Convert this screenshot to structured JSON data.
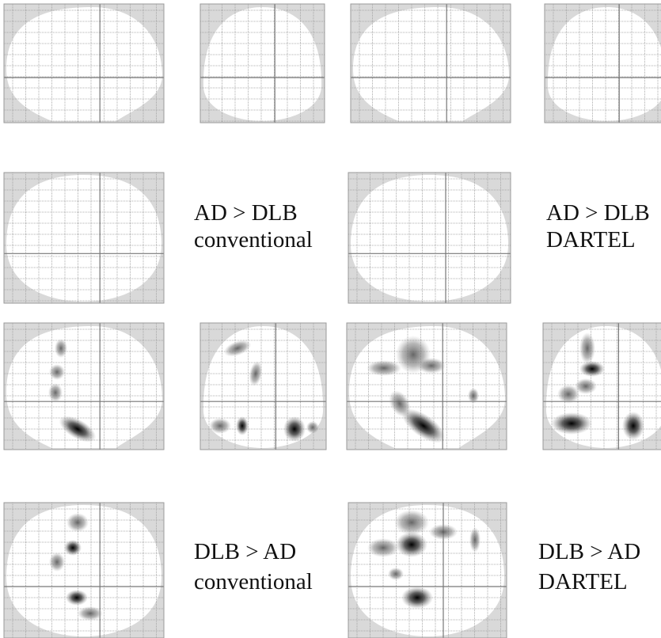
{
  "panels": [
    {
      "contrast": "AD > DLB",
      "method": "conventional"
    },
    {
      "contrast": "AD > DLB",
      "method": "DARTEL"
    },
    {
      "contrast": "DLB > AD",
      "method": "conventional"
    },
    {
      "contrast": "DLB > AD",
      "method": "DARTEL"
    }
  ]
}
